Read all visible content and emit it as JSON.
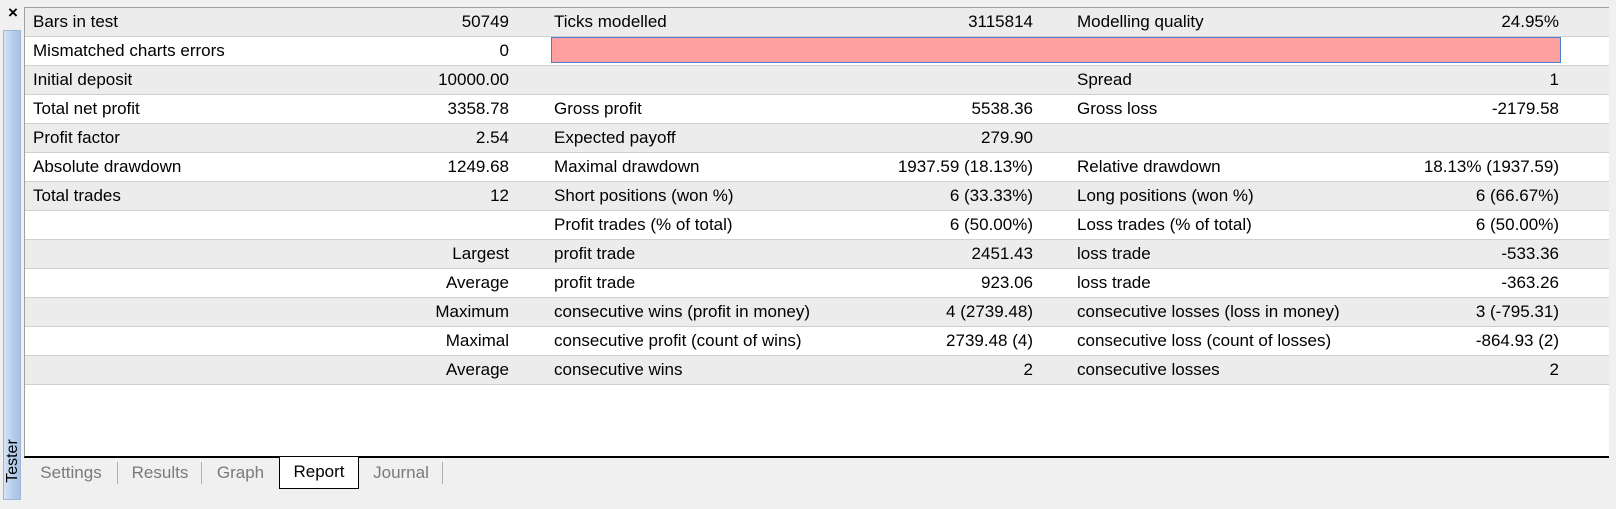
{
  "side": {
    "close_glyph": "×",
    "label": "Tester"
  },
  "report": {
    "rows": [
      {
        "c1": "Bars in test",
        "c2": "50749",
        "c3": "Ticks modelled",
        "c4": "3115814",
        "c5": "Modelling quality",
        "c6": "24.95%"
      },
      {
        "c1": "Mismatched charts errors",
        "c2": "0"
      },
      {
        "c1": "Initial deposit",
        "c2": "10000.00",
        "c3": "",
        "c4": "",
        "c5": "Spread",
        "c6": "1"
      },
      {
        "c1": "Total net profit",
        "c2": "3358.78",
        "c3": "Gross profit",
        "c4": "5538.36",
        "c5": "Gross loss",
        "c6": "-2179.58"
      },
      {
        "c1": "Profit factor",
        "c2": "2.54",
        "c3": "Expected payoff",
        "c4": "279.90",
        "c5": "",
        "c6": ""
      },
      {
        "c1": "Absolute drawdown",
        "c2": "1249.68",
        "c3": "Maximal drawdown",
        "c4": "1937.59 (18.13%)",
        "c5": "Relative drawdown",
        "c6": "18.13% (1937.59)"
      },
      {
        "c1": "Total trades",
        "c2": "12",
        "c3": "Short positions (won %)",
        "c4": "6 (33.33%)",
        "c5": "Long positions (won %)",
        "c6": "6 (66.67%)"
      },
      {
        "c1": "",
        "c3": "Profit trades (% of total)",
        "c4": "6 (50.00%)",
        "c5": "Loss trades (% of total)",
        "c6": "6 (50.00%)"
      },
      {
        "c1": "Largest",
        "c3": "profit trade",
        "c4": "2451.43",
        "c5": "loss trade",
        "c6": "-533.36"
      },
      {
        "c1": "Average",
        "c3": "profit trade",
        "c4": "923.06",
        "c5": "loss trade",
        "c6": "-363.26"
      },
      {
        "c1": "Maximum",
        "c3": "consecutive wins (profit in money)",
        "c4": "4 (2739.48)",
        "c5": "consecutive losses (loss in money)",
        "c6": "3 (-795.31)"
      },
      {
        "c1": "Maximal",
        "c3": "consecutive profit (count of wins)",
        "c4": "2739.48 (4)",
        "c5": "consecutive loss (count of losses)",
        "c6": "-864.93 (2)"
      },
      {
        "c1": "Average",
        "c3": "consecutive wins",
        "c4": "2",
        "c5": "consecutive losses",
        "c6": "2"
      }
    ],
    "mismatch_bar_color": "#ff9f9f"
  },
  "tabs": [
    {
      "label": "Settings",
      "active": false
    },
    {
      "label": "Results",
      "active": false
    },
    {
      "label": "Graph",
      "active": false
    },
    {
      "label": "Report",
      "active": true
    },
    {
      "label": "Journal",
      "active": false
    }
  ]
}
